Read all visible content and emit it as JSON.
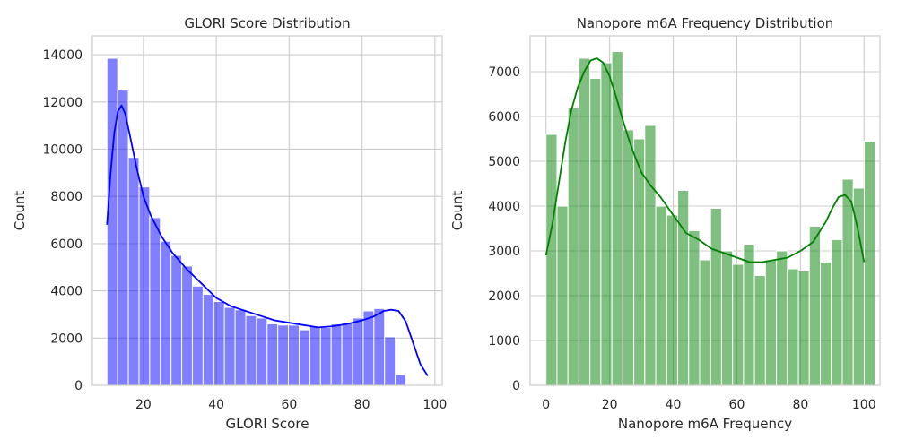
{
  "chart_data": [
    {
      "type": "bar",
      "subtype": "histogram",
      "title": "GLORI Score Distribution",
      "xlabel": "GLORI Score",
      "ylabel": "Count",
      "xlim": [
        6,
        102
      ],
      "ylim": [
        0,
        14800
      ],
      "xticks": [
        20,
        40,
        60,
        80,
        100
      ],
      "yticks": [
        0,
        2000,
        4000,
        6000,
        8000,
        10000,
        12000,
        14000
      ],
      "grid": true,
      "bar_color": "#0000ff",
      "kde_color": "#0000ff",
      "bins": {
        "start": 10,
        "width": 2.93,
        "counts": [
          13850,
          12500,
          9650,
          8400,
          7100,
          6100,
          5500,
          5050,
          4200,
          3850,
          3550,
          3300,
          3200,
          2950,
          2850,
          2600,
          2550,
          2550,
          2350,
          2500,
          2450,
          2600,
          2650,
          2850,
          3150,
          3250,
          2050,
          450
        ]
      },
      "kde": {
        "x": [
          10,
          11,
          12,
          13,
          14,
          15,
          16,
          18,
          20,
          22,
          25,
          28,
          32,
          36,
          40,
          44,
          48,
          52,
          56,
          60,
          64,
          68,
          72,
          76,
          80,
          83,
          86,
          88,
          90,
          92,
          94,
          96,
          98
        ],
        "y": [
          6800,
          9000,
          10700,
          11600,
          11850,
          11500,
          10800,
          9300,
          8000,
          7200,
          6300,
          5600,
          4900,
          4300,
          3700,
          3350,
          3150,
          2950,
          2750,
          2650,
          2550,
          2450,
          2500,
          2600,
          2750,
          2900,
          3150,
          3200,
          3150,
          2700,
          1800,
          900,
          400
        ]
      }
    },
    {
      "type": "bar",
      "subtype": "histogram",
      "title": "Nanopore m6A Frequency Distribution",
      "xlabel": "Nanopore m6A Frequency",
      "ylabel": "Count",
      "xlim": [
        -5,
        105
      ],
      "ylim": [
        0,
        7800
      ],
      "xticks": [
        0,
        20,
        40,
        60,
        80,
        100
      ],
      "yticks": [
        0,
        1000,
        2000,
        3000,
        4000,
        5000,
        6000,
        7000
      ],
      "grid": true,
      "bar_color": "#008000",
      "kde_color": "#008000",
      "bins": {
        "start": 0,
        "width": 3.45,
        "counts": [
          5600,
          4000,
          6200,
          7300,
          6850,
          7200,
          7450,
          5700,
          5500,
          5800,
          4000,
          3800,
          4350,
          3450,
          2800,
          3950,
          3000,
          2700,
          3150,
          2450,
          2800,
          3000,
          2600,
          2550,
          3550,
          2750,
          3250,
          4600,
          4400,
          5450
        ]
      },
      "kde": {
        "x": [
          0,
          2,
          4,
          6,
          8,
          10,
          12,
          14,
          16,
          18,
          20,
          22,
          24,
          26,
          28,
          30,
          33,
          36,
          40,
          44,
          48,
          52,
          56,
          60,
          64,
          68,
          72,
          76,
          80,
          84,
          88,
          90,
          92,
          94,
          96,
          98,
          100
        ],
        "y": [
          2900,
          3600,
          4500,
          5400,
          6150,
          6650,
          7000,
          7250,
          7300,
          7200,
          6900,
          6450,
          5950,
          5500,
          5100,
          4750,
          4450,
          4200,
          3800,
          3400,
          3250,
          3050,
          2950,
          2850,
          2750,
          2750,
          2800,
          2850,
          3000,
          3200,
          3650,
          3950,
          4200,
          4250,
          4100,
          3500,
          2750
        ]
      }
    }
  ]
}
